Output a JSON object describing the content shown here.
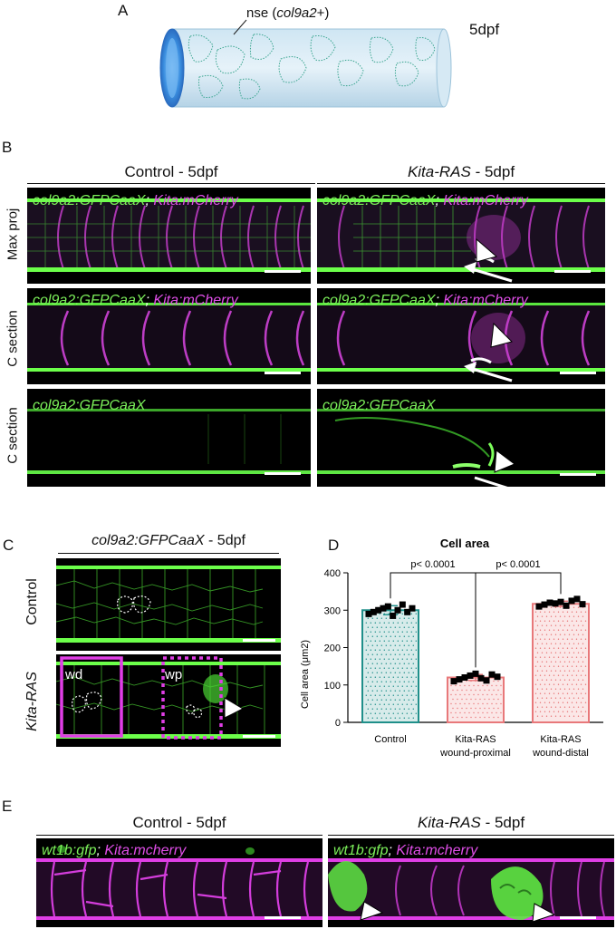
{
  "panel_a": {
    "letter": "A",
    "callout": "nse (col9a2+)",
    "callout_plain": "nse (",
    "callout_gene": "col9a2",
    "callout_end": "+)",
    "stage": "5dpf"
  },
  "panel_b": {
    "letter": "B",
    "col_control": "Control - 5dpf",
    "col_kita": "Kita-RAS",
    "col_kita_suffix": " - 5dpf",
    "rows": [
      "Max proj",
      "C section",
      "C section"
    ],
    "label_green": "col9a2:GFPCaaX",
    "label_sep": ";",
    "label_magenta": "Kita:mCherry"
  },
  "panel_c": {
    "letter": "C",
    "title_gene": "col9a2:GFPCaaX",
    "title_suffix": " - 5dpf",
    "rows": [
      "Control",
      "Kita-RAS"
    ],
    "box_wd": "wd",
    "box_wp": "wp"
  },
  "panel_d": {
    "letter": "D",
    "p1": "p< 0.0001",
    "p2": "p< 0.0001"
  },
  "panel_e": {
    "letter": "E",
    "col_control": "Control - 5dpf",
    "col_kita": "Kita-RAS",
    "col_kita_suffix": " - 5dpf",
    "label_green": "wt1b:gfp",
    "label_sep": ";",
    "label_magenta": "Kita:mcherry"
  },
  "colors": {
    "green": "#7cf05a",
    "magenta": "#e04ee8",
    "teal": "#1f8f8a",
    "salmon": "#e8787a"
  },
  "chart_data": {
    "type": "bar",
    "title": "Cell area",
    "ylabel": "Cell area (μm2)",
    "xlabel": "",
    "ylim": [
      0,
      400
    ],
    "yticks": [
      0,
      100,
      200,
      300,
      400
    ],
    "categories": [
      "Control",
      "Kita-RAS wound-proximal",
      "Kita-RAS wound-distal"
    ],
    "category_lines": [
      [
        "Control"
      ],
      [
        "Kita-RAS",
        "wound-proximal"
      ],
      [
        "Kita-RAS",
        "wound-distal"
      ]
    ],
    "values": [
      300,
      120,
      317
    ],
    "errors": [
      12,
      8,
      7
    ],
    "bar_colors": [
      "#1f8f8a",
      "#e8787a",
      "#e8787a"
    ],
    "points": [
      [
        290,
        295,
        300,
        305,
        310,
        285,
        300,
        315,
        295,
        305
      ],
      [
        110,
        115,
        120,
        125,
        130,
        118,
        112,
        128,
        122
      ],
      [
        310,
        315,
        320,
        318,
        322,
        312,
        325,
        330,
        316
      ]
    ],
    "comparisons": [
      {
        "from": 0,
        "to": 1,
        "label": "p< 0.0001"
      },
      {
        "from": 1,
        "to": 2,
        "label": "p< 0.0001"
      }
    ]
  }
}
